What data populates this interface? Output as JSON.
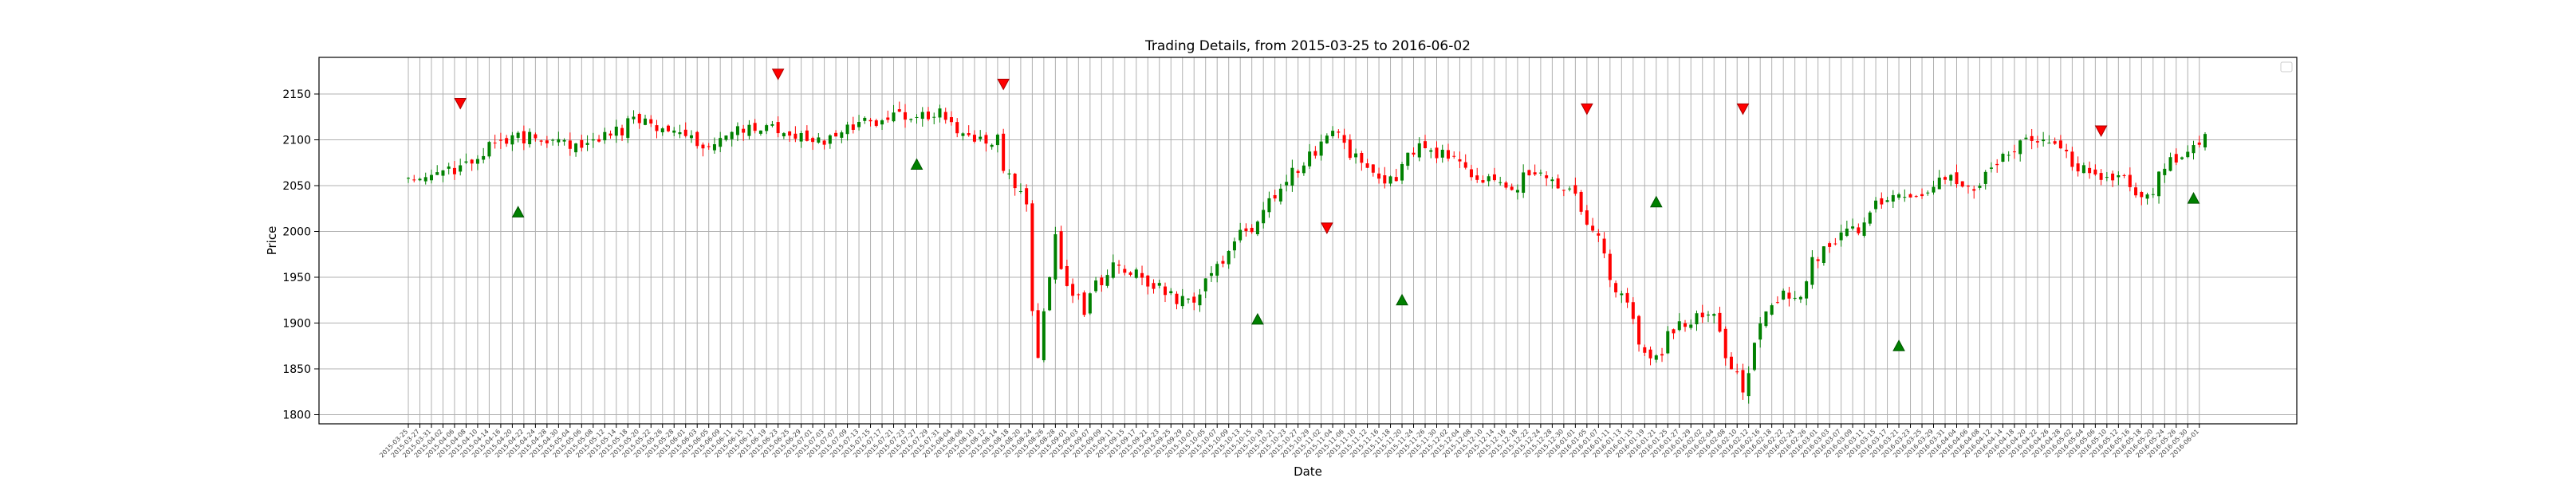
{
  "chart_data": {
    "type": "candlestick",
    "title": "Trading Details, from 2015-03-25 to 2016-06-02",
    "xlabel": "Date",
    "ylabel": "Price",
    "x_range": [
      "2015-03-25",
      "2016-06-02"
    ],
    "ylim": [
      1790,
      2190
    ],
    "yticks": [
      1800,
      1850,
      1900,
      1950,
      2000,
      2050,
      2100,
      2150
    ],
    "grid": true,
    "legend": "top-right",
    "colors": {
      "up": "#008000",
      "down": "#ff0000",
      "buy_marker": "#008000",
      "sell_marker": "#ff0000"
    },
    "close_path": [
      [
        "2015-03-25",
        2062
      ],
      [
        "2015-04-06",
        2068
      ],
      [
        "2015-04-14",
        2092
      ],
      [
        "2015-04-24",
        2105
      ],
      [
        "2015-05-05",
        2090
      ],
      [
        "2015-05-13",
        2108
      ],
      [
        "2015-05-21",
        2123
      ],
      [
        "2015-05-29",
        2110
      ],
      [
        "2015-06-05",
        2090
      ],
      [
        "2015-06-12",
        2108
      ],
      [
        "2015-06-19",
        2115
      ],
      [
        "2015-06-26",
        2105
      ],
      [
        "2015-07-02",
        2100
      ],
      [
        "2015-07-09",
        2110
      ],
      [
        "2015-07-16",
        2120
      ],
      [
        "2015-07-23",
        2125
      ],
      [
        "2015-07-31",
        2130
      ],
      [
        "2015-08-07",
        2105
      ],
      [
        "2015-08-14",
        2100
      ],
      [
        "2015-08-21",
        2030
      ],
      [
        "2015-08-25",
        1867
      ],
      [
        "2015-08-28",
        1990
      ],
      [
        "2015-09-04",
        1915
      ],
      [
        "2015-09-11",
        1960
      ],
      [
        "2015-09-18",
        1950
      ],
      [
        "2015-09-25",
        1935
      ],
      [
        "2015-09-30",
        1920
      ],
      [
        "2015-10-06",
        1960
      ],
      [
        "2015-10-13",
        1995
      ],
      [
        "2015-10-20",
        2030
      ],
      [
        "2015-10-27",
        2070
      ],
      [
        "2015-11-03",
        2110
      ],
      [
        "2015-11-10",
        2080
      ],
      [
        "2015-11-17",
        2050
      ],
      [
        "2015-11-24",
        2090
      ],
      [
        "2015-12-02",
        2085
      ],
      [
        "2015-12-09",
        2060
      ],
      [
        "2015-12-16",
        2045
      ],
      [
        "2015-12-23",
        2065
      ],
      [
        "2015-12-31",
        2050
      ],
      [
        "2016-01-07",
        1990
      ],
      [
        "2016-01-14",
        1920
      ],
      [
        "2016-01-20",
        1855
      ],
      [
        "2016-01-27",
        1900
      ],
      [
        "2016-02-03",
        1915
      ],
      [
        "2016-02-11",
        1830
      ],
      [
        "2016-02-18",
        1925
      ],
      [
        "2016-02-25",
        1935
      ],
      [
        "2016-03-03",
        1990
      ],
      [
        "2016-03-10",
        2000
      ],
      [
        "2016-03-17",
        2040
      ],
      [
        "2016-03-24",
        2035
      ],
      [
        "2016-03-31",
        2060
      ],
      [
        "2016-04-07",
        2050
      ],
      [
        "2016-04-14",
        2080
      ],
      [
        "2016-04-21",
        2100
      ],
      [
        "2016-04-28",
        2090
      ],
      [
        "2016-05-05",
        2065
      ],
      [
        "2016-05-12",
        2060
      ],
      [
        "2016-05-19",
        2040
      ],
      [
        "2016-05-26",
        2080
      ],
      [
        "2016-06-02",
        2100
      ]
    ],
    "signals": [
      {
        "type": "sell",
        "date": "2015-04-07",
        "price": 2140
      },
      {
        "type": "buy",
        "date": "2015-04-21",
        "price": 2021
      },
      {
        "type": "sell",
        "date": "2015-06-23",
        "price": 2172
      },
      {
        "type": "buy",
        "date": "2015-07-27",
        "price": 2073
      },
      {
        "type": "sell",
        "date": "2015-08-17",
        "price": 2161
      },
      {
        "type": "buy",
        "date": "2015-10-16",
        "price": 1904
      },
      {
        "type": "sell",
        "date": "2015-11-03",
        "price": 2004
      },
      {
        "type": "buy",
        "date": "2015-11-20",
        "price": 1925
      },
      {
        "type": "sell",
        "date": "2016-01-05",
        "price": 2134
      },
      {
        "type": "buy",
        "date": "2016-01-21",
        "price": 2032
      },
      {
        "type": "sell",
        "date": "2016-02-11",
        "price": 2134
      },
      {
        "type": "buy",
        "date": "2016-03-21",
        "price": 1875
      },
      {
        "type": "sell",
        "date": "2016-05-09",
        "price": 2110
      },
      {
        "type": "buy",
        "date": "2016-05-31",
        "price": 2036
      }
    ]
  }
}
